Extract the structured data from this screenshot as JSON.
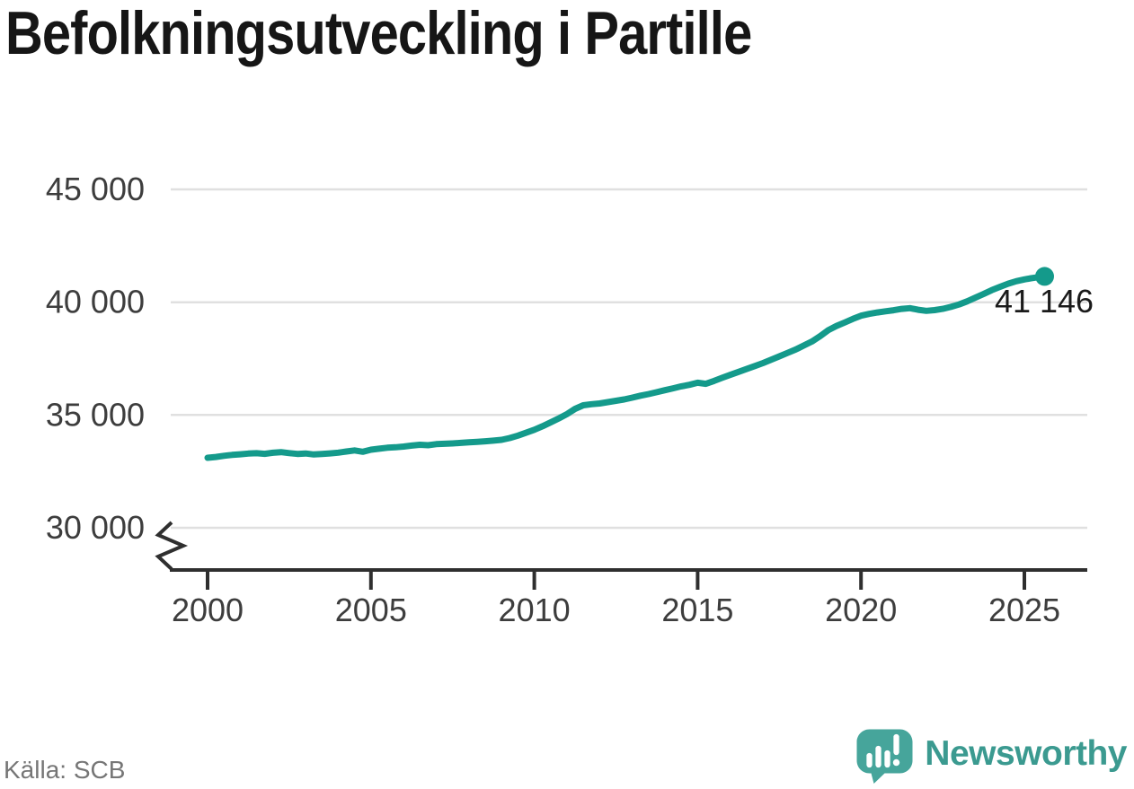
{
  "title": "Befolkningsutveckling i Partille",
  "source": "Källa: SCB",
  "logo": {
    "text": "Newsworthy"
  },
  "colors": {
    "title": "#161616",
    "line": "#149a8b",
    "grid": "#e0e0e0",
    "axis": "#2f2f2f",
    "tick_text": "#3d3d3d",
    "annotation": "#1a1a1a",
    "source": "#767676",
    "brand": "#3b9a90",
    "icon": "#46a59b"
  },
  "chart_data": {
    "type": "line",
    "title": "Befolkningsutveckling i Partille",
    "xlabel": "",
    "ylabel": "",
    "x_ticks": [
      2000,
      2005,
      2010,
      2015,
      2020,
      2025
    ],
    "x_tick_labels": [
      "2000",
      "2005",
      "2010",
      "2015",
      "2020",
      "2025"
    ],
    "y_ticks": [
      30000,
      35000,
      40000,
      45000
    ],
    "y_tick_labels": [
      "30 000",
      "35 000",
      "40 000",
      "45 000"
    ],
    "ylim": [
      30000,
      45000
    ],
    "xlim": [
      2000,
      2026.8
    ],
    "grid": "horizontal",
    "axis_break_below_y": 30000,
    "last_value": 41146,
    "last_point_label": "41 146",
    "series": [
      {
        "name": "Partille",
        "points": [
          [
            2000,
            33105
          ],
          [
            2000.25,
            33140
          ],
          [
            2000.5,
            33190
          ],
          [
            2000.75,
            33230
          ],
          [
            2001,
            33260
          ],
          [
            2001.25,
            33290
          ],
          [
            2001.5,
            33305
          ],
          [
            2001.75,
            33280
          ],
          [
            2002,
            33325
          ],
          [
            2002.25,
            33355
          ],
          [
            2002.5,
            33310
          ],
          [
            2002.75,
            33275
          ],
          [
            2003,
            33295
          ],
          [
            2003.25,
            33250
          ],
          [
            2003.5,
            33270
          ],
          [
            2003.75,
            33300
          ],
          [
            2004,
            33330
          ],
          [
            2004.25,
            33380
          ],
          [
            2004.5,
            33430
          ],
          [
            2004.75,
            33370
          ],
          [
            2005,
            33460
          ],
          [
            2005.25,
            33505
          ],
          [
            2005.5,
            33550
          ],
          [
            2005.75,
            33570
          ],
          [
            2006,
            33600
          ],
          [
            2006.25,
            33645
          ],
          [
            2006.5,
            33680
          ],
          [
            2006.75,
            33660
          ],
          [
            2007,
            33710
          ],
          [
            2007.25,
            33725
          ],
          [
            2007.5,
            33740
          ],
          [
            2007.75,
            33765
          ],
          [
            2008,
            33790
          ],
          [
            2008.25,
            33810
          ],
          [
            2008.5,
            33835
          ],
          [
            2008.75,
            33865
          ],
          [
            2009,
            33900
          ],
          [
            2009.25,
            33980
          ],
          [
            2009.5,
            34085
          ],
          [
            2009.75,
            34215
          ],
          [
            2010,
            34345
          ],
          [
            2010.25,
            34500
          ],
          [
            2010.5,
            34670
          ],
          [
            2010.75,
            34850
          ],
          [
            2011,
            35040
          ],
          [
            2011.25,
            35270
          ],
          [
            2011.5,
            35430
          ],
          [
            2011.75,
            35480
          ],
          [
            2012,
            35510
          ],
          [
            2012.25,
            35570
          ],
          [
            2012.5,
            35630
          ],
          [
            2012.75,
            35690
          ],
          [
            2013,
            35770
          ],
          [
            2013.25,
            35855
          ],
          [
            2013.5,
            35930
          ],
          [
            2013.75,
            36010
          ],
          [
            2014,
            36100
          ],
          [
            2014.25,
            36185
          ],
          [
            2014.5,
            36270
          ],
          [
            2014.75,
            36340
          ],
          [
            2015,
            36430
          ],
          [
            2015.25,
            36380
          ],
          [
            2015.5,
            36510
          ],
          [
            2015.75,
            36650
          ],
          [
            2016,
            36780
          ],
          [
            2016.25,
            36910
          ],
          [
            2016.5,
            37040
          ],
          [
            2016.75,
            37170
          ],
          [
            2017,
            37300
          ],
          [
            2017.25,
            37450
          ],
          [
            2017.5,
            37600
          ],
          [
            2017.75,
            37750
          ],
          [
            2018,
            37900
          ],
          [
            2018.25,
            38080
          ],
          [
            2018.5,
            38260
          ],
          [
            2018.75,
            38500
          ],
          [
            2019,
            38760
          ],
          [
            2019.25,
            38950
          ],
          [
            2019.5,
            39100
          ],
          [
            2019.75,
            39260
          ],
          [
            2020,
            39400
          ],
          [
            2020.25,
            39480
          ],
          [
            2020.5,
            39545
          ],
          [
            2020.75,
            39595
          ],
          [
            2021,
            39645
          ],
          [
            2021.25,
            39705
          ],
          [
            2021.5,
            39735
          ],
          [
            2021.75,
            39665
          ],
          [
            2022,
            39615
          ],
          [
            2022.25,
            39650
          ],
          [
            2022.5,
            39705
          ],
          [
            2022.75,
            39790
          ],
          [
            2023,
            39900
          ],
          [
            2023.25,
            40040
          ],
          [
            2023.5,
            40200
          ],
          [
            2023.75,
            40360
          ],
          [
            2024,
            40530
          ],
          [
            2024.25,
            40680
          ],
          [
            2024.5,
            40820
          ],
          [
            2024.75,
            40930
          ],
          [
            2025,
            41010
          ],
          [
            2025.2,
            41060
          ],
          [
            2025.4,
            41105
          ],
          [
            2025.62,
            41146
          ]
        ]
      }
    ]
  }
}
